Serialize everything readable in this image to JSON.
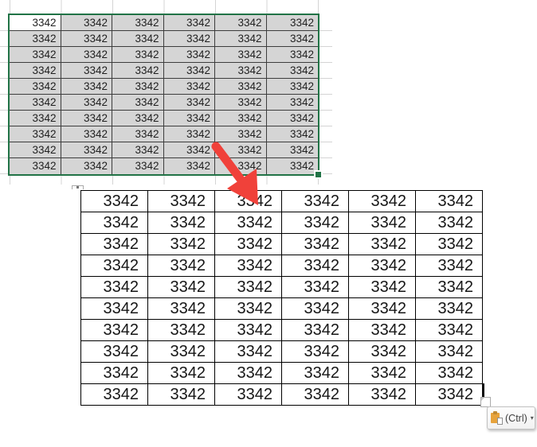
{
  "excel_selection": {
    "rows": 10,
    "columns": 6,
    "cell_value": "3342"
  },
  "pasted_table": {
    "rows": 10,
    "columns": 6,
    "cell_value": "3342"
  },
  "paste_options": {
    "label": "(Ctrl)",
    "dropdown_glyph": "▾"
  },
  "colors": {
    "selection_green": "#217346",
    "selection_fill": "#d5d5d5",
    "active_cell_fill": "#ffffff",
    "excel_cell_border": "#3d3d3d",
    "sheet_gridline": "#d4d4d4",
    "table_border": "#000000",
    "arrow_red": "#f0413a",
    "clipboard_tan": "#e7a33c",
    "text_dark": "#1f1f1f"
  }
}
